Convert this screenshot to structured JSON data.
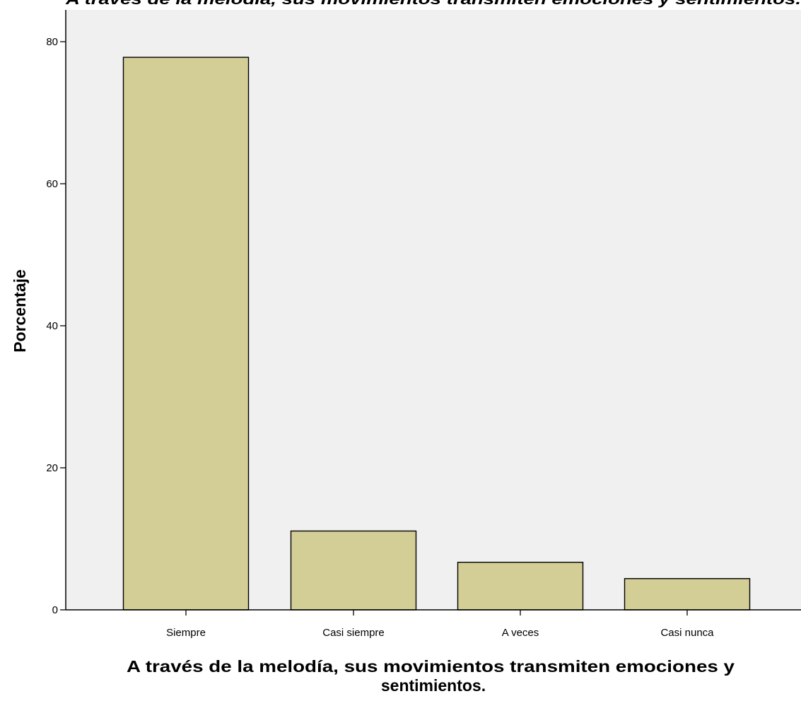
{
  "chart_data": {
    "type": "bar",
    "title": "A través de la melodía, sus movimientos transmiten emociones y sentimientos.",
    "xlabel": "A través de la melodía, sus movimientos transmiten emociones y sentimientos.",
    "xlabel_lines": [
      "A través de la melodía, sus movimientos transmiten emociones y",
      "sentimientos."
    ],
    "ylabel": "Porcentaje",
    "categories": [
      "Siempre",
      "Casi siempre",
      "A veces",
      "Casi nunca"
    ],
    "values": [
      77.8,
      11.1,
      6.7,
      4.4
    ],
    "ylim": [
      0,
      80
    ],
    "yticks": [
      "0",
      "20",
      "40",
      "60",
      "80"
    ],
    "ytick_values": [
      0,
      20,
      40,
      60,
      80
    ],
    "grid": false,
    "legend": "none",
    "colors": {
      "bar_fill": "#d3cd96",
      "bar_stroke": "#000000",
      "plot_background": "#f0f0f0",
      "axis": "#000000"
    }
  }
}
